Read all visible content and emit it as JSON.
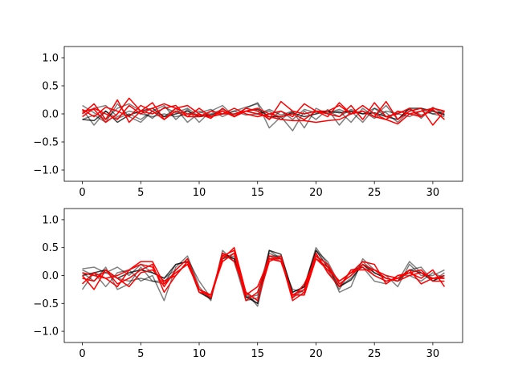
{
  "chart_data": [
    {
      "type": "line",
      "x": [
        0,
        1,
        2,
        3,
        4,
        5,
        6,
        7,
        8,
        9,
        10,
        11,
        12,
        13,
        14,
        15,
        16,
        17,
        18,
        19,
        20,
        21,
        22,
        23,
        24,
        25,
        26,
        27,
        28,
        29,
        30,
        31
      ],
      "xlim": [
        -1.55,
        32.55
      ],
      "ylim": [
        -1.2,
        1.2
      ],
      "xticks": [
        0,
        5,
        10,
        15,
        20,
        25,
        30
      ],
      "yticks": [
        -1.0,
        -0.5,
        0.0,
        0.5,
        1.0
      ],
      "xtick_labels": [
        "0",
        "5",
        "10",
        "15",
        "20",
        "25",
        "30"
      ],
      "ytick_labels": [
        "−1.0",
        "−0.5",
        "0.0",
        "0.5",
        "1.0"
      ],
      "grid": false,
      "series": [
        {
          "color": "#000000",
          "opacity": 0.5,
          "values": [
            0.15,
            0.02,
            -0.1,
            0.1,
            0.18,
            0.05,
            -0.08,
            0.12,
            0.02,
            0.1,
            -0.05,
            0.0,
            0.08,
            -0.02,
            0.1,
            0.2,
            -0.1,
            0.05,
            -0.1,
            0.08,
            0.02,
            0.05,
            -0.05,
            0.08,
            0.0,
            0.1,
            -0.05,
            0.02,
            0.08,
            -0.02,
            0.05,
            0.0
          ]
        },
        {
          "color": "#000000",
          "opacity": 0.5,
          "values": [
            0.08,
            -0.2,
            0.05,
            -0.08,
            0.0,
            -0.1,
            0.05,
            -0.05,
            0.1,
            -0.15,
            0.02,
            0.08,
            -0.05,
            0.05,
            0.12,
            0.18,
            -0.25,
            -0.05,
            -0.3,
            0.05,
            -0.1,
            0.08,
            -0.2,
            0.05,
            -0.15,
            0.1,
            0.02,
            -0.15,
            0.05,
            0.1,
            0.0,
            -0.05
          ]
        },
        {
          "color": "#000000",
          "opacity": 0.5,
          "values": [
            -0.1,
            -0.02,
            -0.15,
            0.18,
            -0.05,
            -0.15,
            0.05,
            0.15,
            -0.1,
            0.08,
            -0.15,
            0.05,
            0.15,
            -0.05,
            0.05,
            0.0,
            0.05,
            -0.1,
            0.05,
            -0.25,
            0.1,
            0.0,
            0.05,
            -0.15,
            0.1,
            -0.05,
            0.15,
            -0.1,
            0.1,
            -0.08,
            0.12,
            -0.02
          ]
        },
        {
          "color": "#000000",
          "opacity": 0.5,
          "values": [
            0.02,
            0.1,
            0.15,
            -0.05,
            0.05,
            0.0,
            -0.05,
            0.0,
            -0.05,
            0.0,
            0.05,
            -0.05,
            0.0,
            0.05,
            -0.02,
            0.0,
            0.08,
            -0.02,
            0.05,
            0.0,
            0.05,
            0.02,
            0.08,
            0.0,
            0.05,
            -0.08,
            0.05,
            0.0,
            -0.05,
            0.05,
            0.0,
            0.05
          ]
        },
        {
          "color": "#000000",
          "opacity": 0.75,
          "values": [
            -0.1,
            -0.12,
            0.05,
            -0.15,
            -0.02,
            0.05,
            0.1,
            -0.05,
            0.0,
            0.05,
            -0.05,
            -0.02,
            0.05,
            -0.05,
            0.05,
            0.08,
            -0.05,
            -0.05,
            0.02,
            -0.05,
            0.0,
            0.05,
            0.02,
            0.05,
            0.0,
            0.02,
            -0.05,
            -0.1,
            0.1,
            0.1,
            0.05,
            -0.02
          ]
        },
        {
          "color": "#ff0000",
          "opacity": 1.0,
          "values": [
            0.0,
            0.18,
            -0.1,
            0.25,
            -0.15,
            0.05,
            0.2,
            -0.1,
            0.05,
            -0.05,
            0.1,
            -0.05,
            0.05,
            -0.05,
            0.1,
            0.05,
            -0.1,
            0.22,
            0.05,
            0.0,
            0.05,
            -0.05,
            0.2,
            0.0,
            0.05,
            -0.05,
            0.22,
            -0.1,
            0.05,
            0.1,
            -0.2,
            0.05
          ]
        },
        {
          "color": "#ff0000",
          "opacity": 1.0,
          "values": [
            0.08,
            -0.05,
            0.12,
            0.05,
            -0.05,
            0.15,
            0.05,
            -0.1,
            0.1,
            0.15,
            0.0,
            -0.08,
            0.1,
            -0.05,
            0.05,
            0.1,
            0.0,
            -0.05,
            0.0,
            -0.1,
            0.05,
            0.0,
            -0.05,
            0.15,
            -0.1,
            0.2,
            -0.05,
            0.0,
            0.1,
            -0.05,
            0.1,
            0.05
          ]
        },
        {
          "color": "#ff0000",
          "opacity": 1.0,
          "values": [
            0.05,
            0.08,
            -0.15,
            0.0,
            0.28,
            0.05,
            0.0,
            0.1,
            0.15,
            -0.05,
            -0.05,
            0.05,
            0.0,
            0.1,
            0.0,
            -0.05,
            0.0,
            0.05,
            -0.05,
            0.18,
            0.05,
            0.05,
            0.15,
            0.0,
            0.15,
            0.0,
            -0.1,
            0.05,
            0.0,
            -0.05,
            0.08,
            -0.1
          ]
        },
        {
          "color": "#ff0000",
          "opacity": 1.0,
          "values": [
            -0.05,
            0.1,
            0.0,
            -0.1,
            0.15,
            0.0,
            0.1,
            0.18,
            0.1,
            0.0,
            -0.02,
            -0.05,
            0.0,
            0.0,
            0.05,
            0.0,
            -0.05,
            -0.1,
            -0.12,
            -0.12,
            -0.15,
            -0.12,
            -0.1,
            0.0,
            0.05,
            -0.05,
            -0.1,
            -0.18,
            0.0,
            0.05,
            0.1,
            0.05
          ]
        }
      ]
    },
    {
      "type": "line",
      "x": [
        0,
        1,
        2,
        3,
        4,
        5,
        6,
        7,
        8,
        9,
        10,
        11,
        12,
        13,
        14,
        15,
        16,
        17,
        18,
        19,
        20,
        21,
        22,
        23,
        24,
        25,
        26,
        27,
        28,
        29,
        30,
        31
      ],
      "xlim": [
        -1.55,
        32.55
      ],
      "ylim": [
        -1.2,
        1.2
      ],
      "xticks": [
        0,
        5,
        10,
        15,
        20,
        25,
        30
      ],
      "yticks": [
        -1.0,
        -0.5,
        0.0,
        0.5,
        1.0
      ],
      "xtick_labels": [
        "0",
        "5",
        "10",
        "15",
        "20",
        "25",
        "30"
      ],
      "ytick_labels": [
        "−1.0",
        "−0.5",
        "0.0",
        "0.5",
        "1.0"
      ],
      "grid": false,
      "series": [
        {
          "color": "#000000",
          "opacity": 0.5,
          "values": [
            0.12,
            0.15,
            0.05,
            0.15,
            0.0,
            0.2,
            0.05,
            -0.05,
            0.1,
            0.3,
            -0.1,
            -0.4,
            0.35,
            0.3,
            -0.35,
            -0.5,
            0.4,
            0.3,
            -0.35,
            -0.2,
            0.5,
            0.2,
            -0.3,
            -0.2,
            0.3,
            0.1,
            0.0,
            -0.2,
            0.2,
            0.0,
            0.0,
            0.1
          ]
        },
        {
          "color": "#000000",
          "opacity": 0.5,
          "values": [
            -0.25,
            0.05,
            -0.2,
            0.05,
            0.1,
            -0.1,
            0.0,
            -0.45,
            0.15,
            0.35,
            -0.2,
            -0.45,
            0.45,
            0.25,
            -0.45,
            -0.4,
            0.35,
            0.25,
            -0.25,
            -0.3,
            0.4,
            0.05,
            -0.2,
            -0.05,
            0.2,
            0.0,
            -0.1,
            -0.05,
            0.1,
            0.15,
            -0.1,
            0.05
          ]
        },
        {
          "color": "#000000",
          "opacity": 0.5,
          "values": [
            0.05,
            -0.1,
            0.15,
            -0.25,
            -0.15,
            0.15,
            -0.1,
            -0.15,
            0.2,
            0.25,
            -0.3,
            -0.4,
            0.3,
            0.35,
            -0.4,
            -0.35,
            0.45,
            0.3,
            -0.4,
            -0.25,
            0.35,
            0.1,
            -0.25,
            0.1,
            0.15,
            -0.1,
            -0.15,
            0.0,
            0.0,
            -0.1,
            0.05,
            -0.05
          ]
        },
        {
          "color": "#000000",
          "opacity": 0.5,
          "values": [
            0.1,
            0.0,
            0.05,
            -0.05,
            -0.1,
            -0.05,
            -0.1,
            -0.1,
            0.05,
            0.2,
            -0.25,
            -0.35,
            0.3,
            0.4,
            -0.3,
            -0.55,
            0.35,
            0.35,
            -0.3,
            -0.2,
            0.45,
            0.25,
            -0.15,
            0.0,
            0.25,
            0.05,
            -0.05,
            -0.1,
            0.25,
            0.05,
            -0.05,
            -0.05
          ]
        },
        {
          "color": "#000000",
          "opacity": 0.75,
          "values": [
            0.0,
            0.05,
            0.1,
            -0.05,
            0.05,
            0.1,
            0.05,
            -0.05,
            0.2,
            0.25,
            -0.3,
            -0.42,
            0.4,
            0.3,
            -0.38,
            -0.5,
            0.45,
            0.38,
            -0.3,
            -0.2,
            0.45,
            0.15,
            -0.2,
            -0.08,
            0.2,
            0.05,
            -0.05,
            -0.1,
            0.1,
            0.05,
            -0.1,
            0.0
          ]
        },
        {
          "color": "#ff0000",
          "opacity": 1.0,
          "values": [
            -0.05,
            -0.1,
            0.1,
            -0.15,
            -0.05,
            0.1,
            0.2,
            -0.3,
            0.0,
            0.25,
            -0.25,
            -0.4,
            0.3,
            0.5,
            -0.3,
            -0.45,
            0.3,
            0.3,
            -0.45,
            -0.3,
            0.35,
            0.2,
            -0.15,
            0.0,
            0.2,
            0.1,
            0.0,
            -0.05,
            0.05,
            -0.05,
            0.1,
            -0.2
          ]
        },
        {
          "color": "#ff0000",
          "opacity": 1.0,
          "values": [
            0.05,
            0.0,
            -0.05,
            0.0,
            0.1,
            0.2,
            0.15,
            -0.2,
            0.1,
            0.3,
            -0.25,
            -0.4,
            0.4,
            0.25,
            -0.3,
            -0.45,
            0.25,
            0.35,
            -0.4,
            -0.15,
            0.3,
            0.1,
            -0.1,
            0.05,
            0.25,
            0.2,
            -0.15,
            0.0,
            0.05,
            0.1,
            -0.1,
            -0.1
          ]
        },
        {
          "color": "#ff0000",
          "opacity": 1.0,
          "values": [
            -0.15,
            0.05,
            -0.05,
            -0.2,
            0.1,
            0.25,
            0.25,
            -0.15,
            0.05,
            0.2,
            -0.25,
            -0.35,
            0.35,
            0.45,
            -0.35,
            -0.2,
            0.3,
            0.25,
            -0.35,
            -0.25,
            0.4,
            0.05,
            -0.2,
            0.1,
            0.1,
            0.1,
            -0.05,
            -0.1,
            0.0,
            0.05,
            -0.05,
            0.0
          ]
        },
        {
          "color": "#ff0000",
          "opacity": 1.0,
          "values": [
            0.0,
            -0.25,
            0.1,
            -0.05,
            -0.2,
            0.05,
            0.1,
            -0.1,
            0.0,
            0.25,
            -0.3,
            -0.35,
            0.25,
            0.4,
            -0.45,
            -0.3,
            0.35,
            0.3,
            -0.35,
            -0.35,
            0.3,
            0.15,
            -0.1,
            0.05,
            0.15,
            0.0,
            -0.1,
            -0.05,
            0.1,
            -0.15,
            -0.05,
            -0.05
          ]
        }
      ]
    }
  ]
}
